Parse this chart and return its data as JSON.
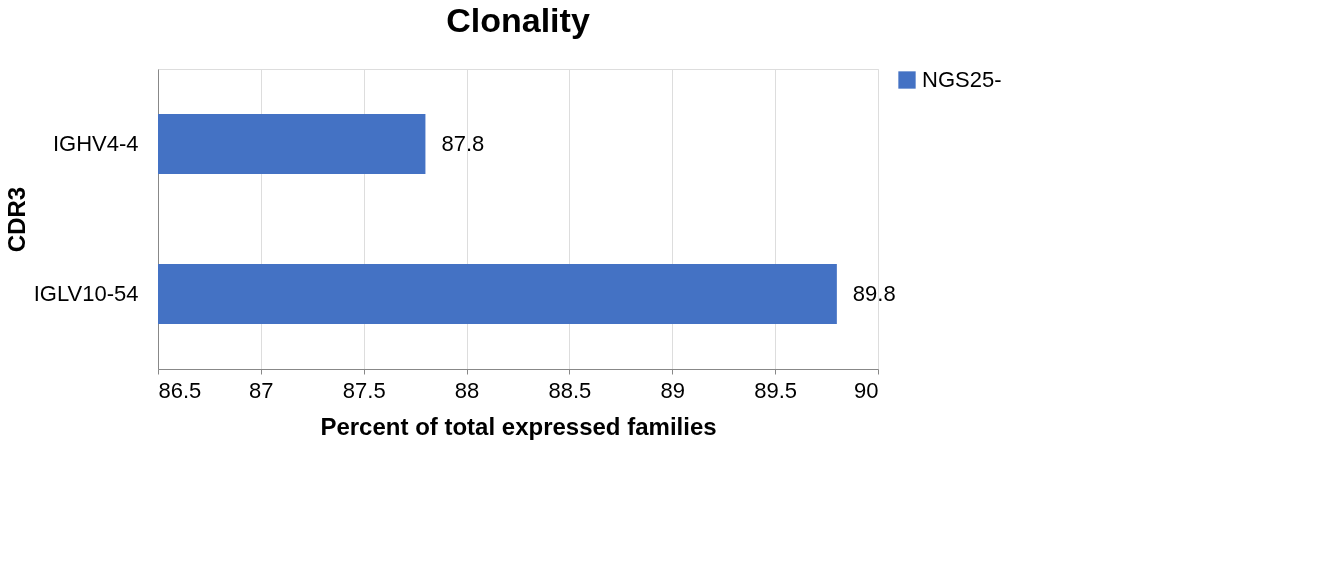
{
  "chart_data": {
    "type": "bar",
    "orientation": "horizontal",
    "title": "Clonality",
    "xlabel": "Percent of total expressed families",
    "ylabel": "CDR3",
    "categories": [
      "IGHV4-4",
      "IGLV10-54"
    ],
    "series": [
      {
        "name": "NGS25-",
        "color": "#4472c4",
        "values": [
          87.8,
          89.8
        ]
      }
    ],
    "xlim": [
      86.5,
      90
    ],
    "xticks": [
      86.5,
      87,
      87.5,
      88,
      88.5,
      89,
      89.5,
      90
    ],
    "grid": "x",
    "data_labels": true,
    "legend": "right"
  }
}
